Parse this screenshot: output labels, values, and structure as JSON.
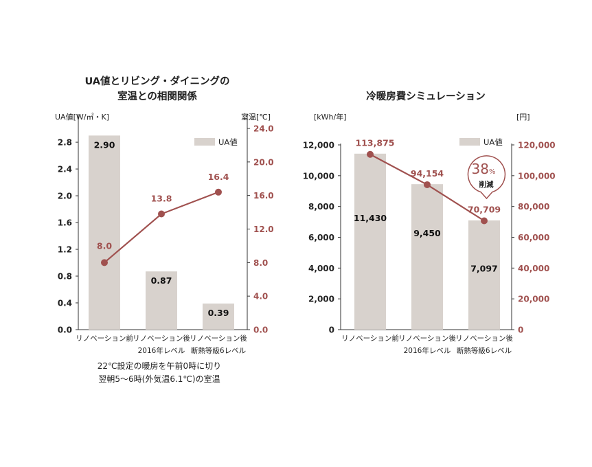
{
  "chart_data": [
    {
      "type": "bar",
      "title_lines": [
        "UA値とリビング・ダイニングの",
        "室温との相関関係"
      ],
      "ylabel_left": "UA値[W/㎡・K]",
      "ylabel_right": "室温[℃]",
      "categories": [
        [
          "リノベーション前"
        ],
        [
          "リノベーション後",
          "2016年レベル"
        ],
        [
          "リノベーション後",
          "断熱等級6レベル"
        ]
      ],
      "series": [
        {
          "name": "UA値",
          "type": "bar",
          "axis": "left",
          "values": [
            2.9,
            0.87,
            0.39
          ],
          "labels": [
            "2.90",
            "0.87",
            "0.39"
          ]
        },
        {
          "type": "line",
          "axis": "right",
          "values": [
            8.0,
            13.8,
            16.4
          ],
          "labels": [
            "8.0",
            "13.8",
            "16.4"
          ]
        }
      ],
      "ylim_left": [
        0,
        3.2
      ],
      "ylim_right": [
        0,
        24.0
      ],
      "yticks_left": [
        "0.0",
        "0.4",
        "0.8",
        "1.2",
        "1.6",
        "2.0",
        "2.4",
        "2.8"
      ],
      "yticks_right": [
        "0.0",
        "4.0",
        "8.0",
        "12.0",
        "16.0",
        "20.0",
        "24.0"
      ],
      "legend": "top-right",
      "note_lines": [
        "22℃設定の暖房を午前0時に切り",
        "翌朝5〜6時(外気温6.1℃)の室温"
      ]
    },
    {
      "type": "bar",
      "title_lines": [
        "冷暖房費シミュレーション"
      ],
      "ylabel_left": "[kWh/年]",
      "ylabel_right": "[円]",
      "categories": [
        [
          "リノベーション前"
        ],
        [
          "リノベーション後",
          "2016年レベル"
        ],
        [
          "リノベーション後",
          "断熱等級6レベル"
        ]
      ],
      "series": [
        {
          "name": "UA値",
          "type": "bar",
          "axis": "left",
          "values": [
            11430,
            9450,
            7097
          ],
          "labels": [
            "11,430",
            "9,450",
            "7,097"
          ]
        },
        {
          "type": "line",
          "axis": "right",
          "values": [
            113875,
            94154,
            70709
          ],
          "labels": [
            "113,875",
            "94,154",
            "70,709"
          ]
        }
      ],
      "ylim_left": [
        0,
        12000
      ],
      "ylim_right": [
        0,
        120000
      ],
      "yticks_left": [
        "0",
        "2,000",
        "4,000",
        "6,000",
        "8,000",
        "10,000",
        "12,000"
      ],
      "yticks_right": [
        "0",
        "20,000",
        "40,000",
        "60,000",
        "80,000",
        "100,000",
        "120,000"
      ],
      "legend": "top-right",
      "badge": {
        "value": "38",
        "unit": "%",
        "sub": "削減"
      }
    }
  ],
  "colors": {
    "bar": "#d8d2cd",
    "line": "#a0514f",
    "axis": "#333333"
  }
}
